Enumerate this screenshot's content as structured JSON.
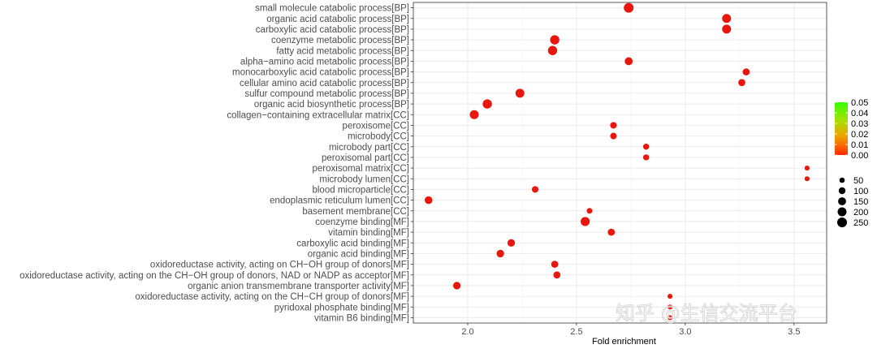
{
  "chart_data": {
    "type": "scatter",
    "title": "",
    "xlabel": "Fold enrichment",
    "ylabel": "",
    "xlim": [
      1.75,
      3.65
    ],
    "xticks": [
      "2.0",
      "2.5",
      "3.0",
      "3.5"
    ],
    "xtick_values": [
      2.0,
      2.5,
      3.0,
      3.5
    ],
    "grid": true,
    "terms": [
      {
        "label": "small molecule catabolic process[BP]",
        "x": 2.74,
        "size": 250,
        "p": 0.0
      },
      {
        "label": "organic acid catabolic process[BP]",
        "x": 3.19,
        "size": 200,
        "p": 0.0
      },
      {
        "label": "carboxylic acid catabolic process[BP]",
        "x": 3.19,
        "size": 200,
        "p": 0.0
      },
      {
        "label": "coenzyme metabolic process[BP]",
        "x": 2.4,
        "size": 220,
        "p": 0.0
      },
      {
        "label": "fatty acid metabolic process[BP]",
        "x": 2.39,
        "size": 220,
        "p": 0.0
      },
      {
        "label": "alpha−amino acid metabolic process[BP]",
        "x": 2.74,
        "size": 150,
        "p": 0.0
      },
      {
        "label": "monocarboxylic acid catabolic process[BP]",
        "x": 3.28,
        "size": 110,
        "p": 0.0
      },
      {
        "label": "cellular amino acid catabolic process[BP]",
        "x": 3.26,
        "size": 110,
        "p": 0.0
      },
      {
        "label": "sulfur compound metabolic process[BP]",
        "x": 2.24,
        "size": 200,
        "p": 0.0
      },
      {
        "label": "organic acid biosynthetic process[BP]",
        "x": 2.09,
        "size": 220,
        "p": 0.0
      },
      {
        "label": "collagen−containing extracellular matrix[CC]",
        "x": 2.03,
        "size": 200,
        "p": 0.0
      },
      {
        "label": "peroxisome[CC]",
        "x": 2.67,
        "size": 90,
        "p": 0.0
      },
      {
        "label": "microbody[CC]",
        "x": 2.67,
        "size": 90,
        "p": 0.0
      },
      {
        "label": "microbody part[CC]",
        "x": 2.82,
        "size": 70,
        "p": 0.0
      },
      {
        "label": "peroxisomal part[CC]",
        "x": 2.82,
        "size": 70,
        "p": 0.0
      },
      {
        "label": "peroxisomal matrix[CC]",
        "x": 3.56,
        "size": 40,
        "p": 0.0
      },
      {
        "label": "microbody lumen[CC]",
        "x": 3.56,
        "size": 40,
        "p": 0.0
      },
      {
        "label": "blood microparticle[CC]",
        "x": 2.31,
        "size": 90,
        "p": 0.0
      },
      {
        "label": "endoplasmic reticulum lumen[CC]",
        "x": 1.82,
        "size": 140,
        "p": 0.0
      },
      {
        "label": "basement membrane[CC]",
        "x": 2.56,
        "size": 60,
        "p": 0.0
      },
      {
        "label": "coenzyme binding[MF]",
        "x": 2.54,
        "size": 210,
        "p": 0.0
      },
      {
        "label": "vitamin binding[MF]",
        "x": 2.66,
        "size": 110,
        "p": 0.0
      },
      {
        "label": "carboxylic acid binding[MF]",
        "x": 2.2,
        "size": 130,
        "p": 0.0
      },
      {
        "label": "organic acid binding[MF]",
        "x": 2.15,
        "size": 130,
        "p": 0.0
      },
      {
        "label": "oxidoreductase activity, acting on CH−OH group of donors[MF]",
        "x": 2.4,
        "size": 110,
        "p": 0.0
      },
      {
        "label": "oxidoreductase activity, acting on the CH−OH group of donors, NAD or NADP as acceptor[MF]",
        "x": 2.41,
        "size": 110,
        "p": 0.0
      },
      {
        "label": "organic anion transmembrane transporter activity[MF]",
        "x": 1.95,
        "size": 130,
        "p": 0.0
      },
      {
        "label": "oxidoreductase activity, acting on the CH−CH group of donors[MF]",
        "x": 2.93,
        "size": 40,
        "p": 0.0
      },
      {
        "label": "pyridoxal phosphate binding[MF]",
        "x": 2.93,
        "size": 40,
        "p": 0.0
      },
      {
        "label": "vitamin B6 binding[MF]",
        "x": 2.93,
        "size": 40,
        "p": 0.0
      }
    ],
    "color_legend": {
      "title": "",
      "ticks": [
        "0.05",
        "0.04",
        "0.03",
        "0.02",
        "0.01",
        "0.00"
      ],
      "tick_values": [
        0.05,
        0.04,
        0.03,
        0.02,
        0.01,
        0.0
      ],
      "colors": [
        "#00ff00",
        "#ff0000"
      ]
    },
    "size_legend": {
      "title": "",
      "labels": [
        "50",
        "100",
        "150",
        "200",
        "250"
      ],
      "values": [
        50,
        100,
        150,
        200,
        250
      ]
    },
    "point_color": "#e8160c",
    "watermark": "知乎 @生信交流平台"
  }
}
